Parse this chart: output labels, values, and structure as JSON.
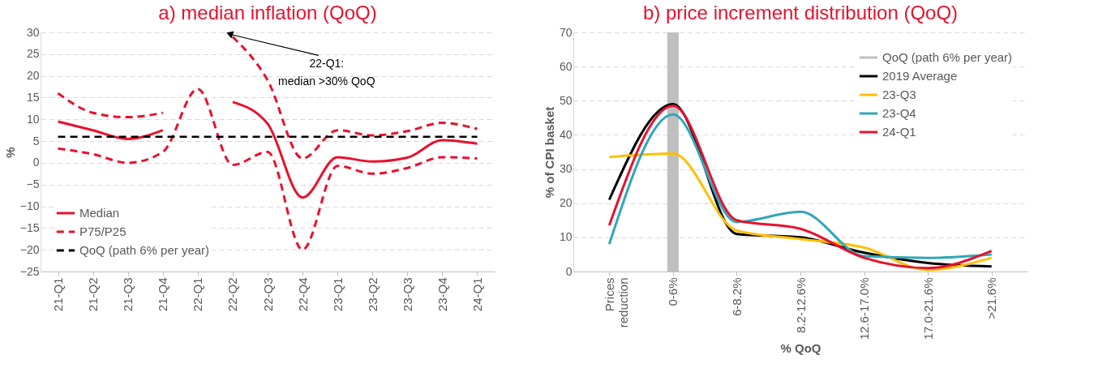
{
  "chart_data": [
    {
      "type": "line",
      "title": "a) median inflation (QoQ)",
      "ylabel": "%",
      "categories": [
        "21-Q1",
        "21-Q2",
        "21-Q3",
        "21-Q4",
        "22-Q1",
        "22-Q2",
        "22-Q3",
        "22-Q4",
        "23-Q1",
        "23-Q2",
        "23-Q3",
        "23-Q4",
        "24-Q1"
      ],
      "series": [
        {
          "name": "Median",
          "color": "#e8112d",
          "line_style": "solid",
          "values": [
            9.5,
            7.5,
            5.5,
            7.5,
            null,
            14,
            9,
            -8,
            1.3,
            0.3,
            1.2,
            5.2,
            4.4
          ]
        },
        {
          "name": "P75/P25",
          "color": "#e8112d",
          "line_style": "dashed",
          "values": [
            16,
            11.5,
            10.5,
            11.5,
            null,
            29,
            19,
            1,
            7.5,
            6.3,
            7.3,
            9.2,
            7.8
          ]
        },
        {
          "color": "#e8112d",
          "line_style": "dashed",
          "values": [
            3.3,
            2,
            0,
            2.5,
            17,
            -0.5,
            2.5,
            -20,
            -0.7,
            -2.5,
            -1.2,
            1.3,
            1
          ]
        }
      ],
      "ref_lines": [
        {
          "axis": "y",
          "value": 6,
          "label": "QoQ (path 6% per year)",
          "color": "#000000",
          "line_style": "dashed"
        }
      ],
      "annotations": [
        "22-Q1:\nmedian >30% QoQ"
      ],
      "ylim": [
        -25,
        30
      ],
      "yticks": [
        -25,
        -20,
        -15,
        -10,
        -5,
        0,
        5,
        10,
        15,
        20,
        25,
        30
      ],
      "grid": "y",
      "legend": "bottom left"
    },
    {
      "type": "line",
      "title": "b) price increment distribution (QoQ)",
      "xlabel": "% QoQ",
      "ylabel": "% of CPI basket",
      "categories": [
        "Prices reduction",
        "0-6%",
        "6-8.2%",
        "8.2-12.6%",
        "12.6-17.0%",
        "17.0-21.6%",
        ">21.6%"
      ],
      "series": [
        {
          "name": "QoQ (path 6% per year)",
          "type": "bar",
          "color": "#bfbfbf",
          "values": [
            null,
            70,
            null,
            null,
            null,
            null,
            null
          ]
        },
        {
          "name": "2019 Average",
          "color": "#000000",
          "values": [
            21,
            49,
            11,
            10,
            5.5,
            2.5,
            1.5
          ]
        },
        {
          "name": "23-Q3",
          "color": "#ffc000",
          "values": [
            33.5,
            34.5,
            12,
            9.5,
            7,
            0.5,
            4
          ]
        },
        {
          "name": "23-Q4",
          "color": "#31a6b8",
          "values": [
            8,
            46,
            14.5,
            17.5,
            4.5,
            4,
            5
          ]
        },
        {
          "name": "24-Q1",
          "color": "#e8112d",
          "values": [
            13.5,
            48.5,
            15,
            12.5,
            4,
            1,
            6
          ]
        }
      ],
      "ylim": [
        0,
        70
      ],
      "yticks": [
        0,
        10,
        20,
        30,
        40,
        50,
        60,
        70
      ],
      "grid": "y",
      "legend": "top right"
    }
  ]
}
